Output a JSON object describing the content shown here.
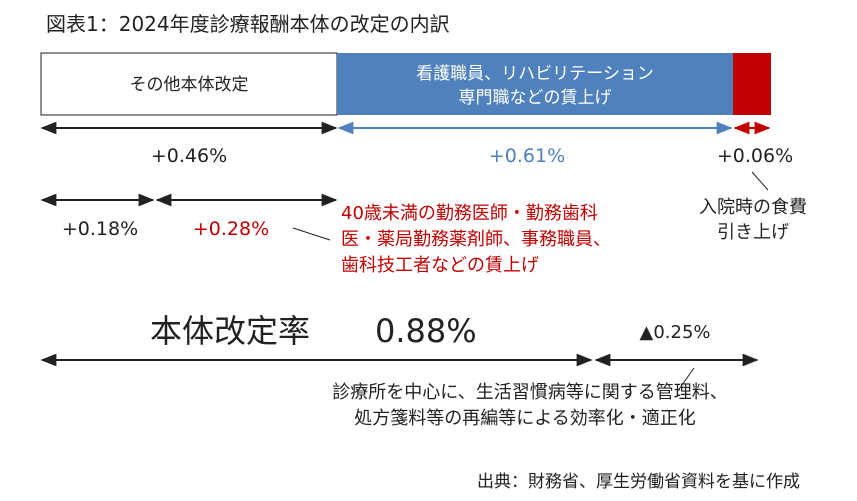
{
  "title": "図表1：2024年度診療報酬本体の改定の内訳",
  "chart_data": {
    "type": "bar",
    "title": "図表1：2024年度診療報酬本体の改定の内訳",
    "series": [
      {
        "value": 0.46,
        "label": "+0.46%",
        "segment_label": "その他本体改定",
        "color": "#ffffff"
      },
      {
        "value": 0.61,
        "label": "+0.61%",
        "segment_label_lines": [
          "看護職員、リハビリテーション",
          "専門職などの賃上げ"
        ],
        "color": "#4f81bd"
      },
      {
        "value": 0.06,
        "label": "+0.06%",
        "color": "#c00000"
      }
    ],
    "sub_breakdown": [
      {
        "value": 0.18,
        "label": "+0.18%"
      },
      {
        "value": 0.28,
        "label": "+0.28%",
        "note_lines": [
          "40歳未満の勤務医師・勤務歯科",
          "医・薬局勤務薬剤師、事務職員、",
          "歯科技工者などの賃上げ"
        ]
      }
    ],
    "meal_note_lines": [
      "入院時の食費",
      "引き上げ"
    ],
    "total": {
      "label": "本体改定率",
      "value_label": "0.88%",
      "value": 0.88
    },
    "reduction": {
      "label": "▲0.25%",
      "value": -0.25,
      "note_lines": [
        "診療所を中心に、生活習慣病等に関する管理料、",
        "処方箋料等の再編等による効率化・適正化"
      ]
    },
    "colors": {
      "blue": "#4f81bd",
      "red": "#c00000",
      "text_blue": "#4f81bd",
      "text_red": "#c00000",
      "black": "#222222"
    }
  },
  "source": "出典：財務省、厚生労働省資料を基に作成"
}
